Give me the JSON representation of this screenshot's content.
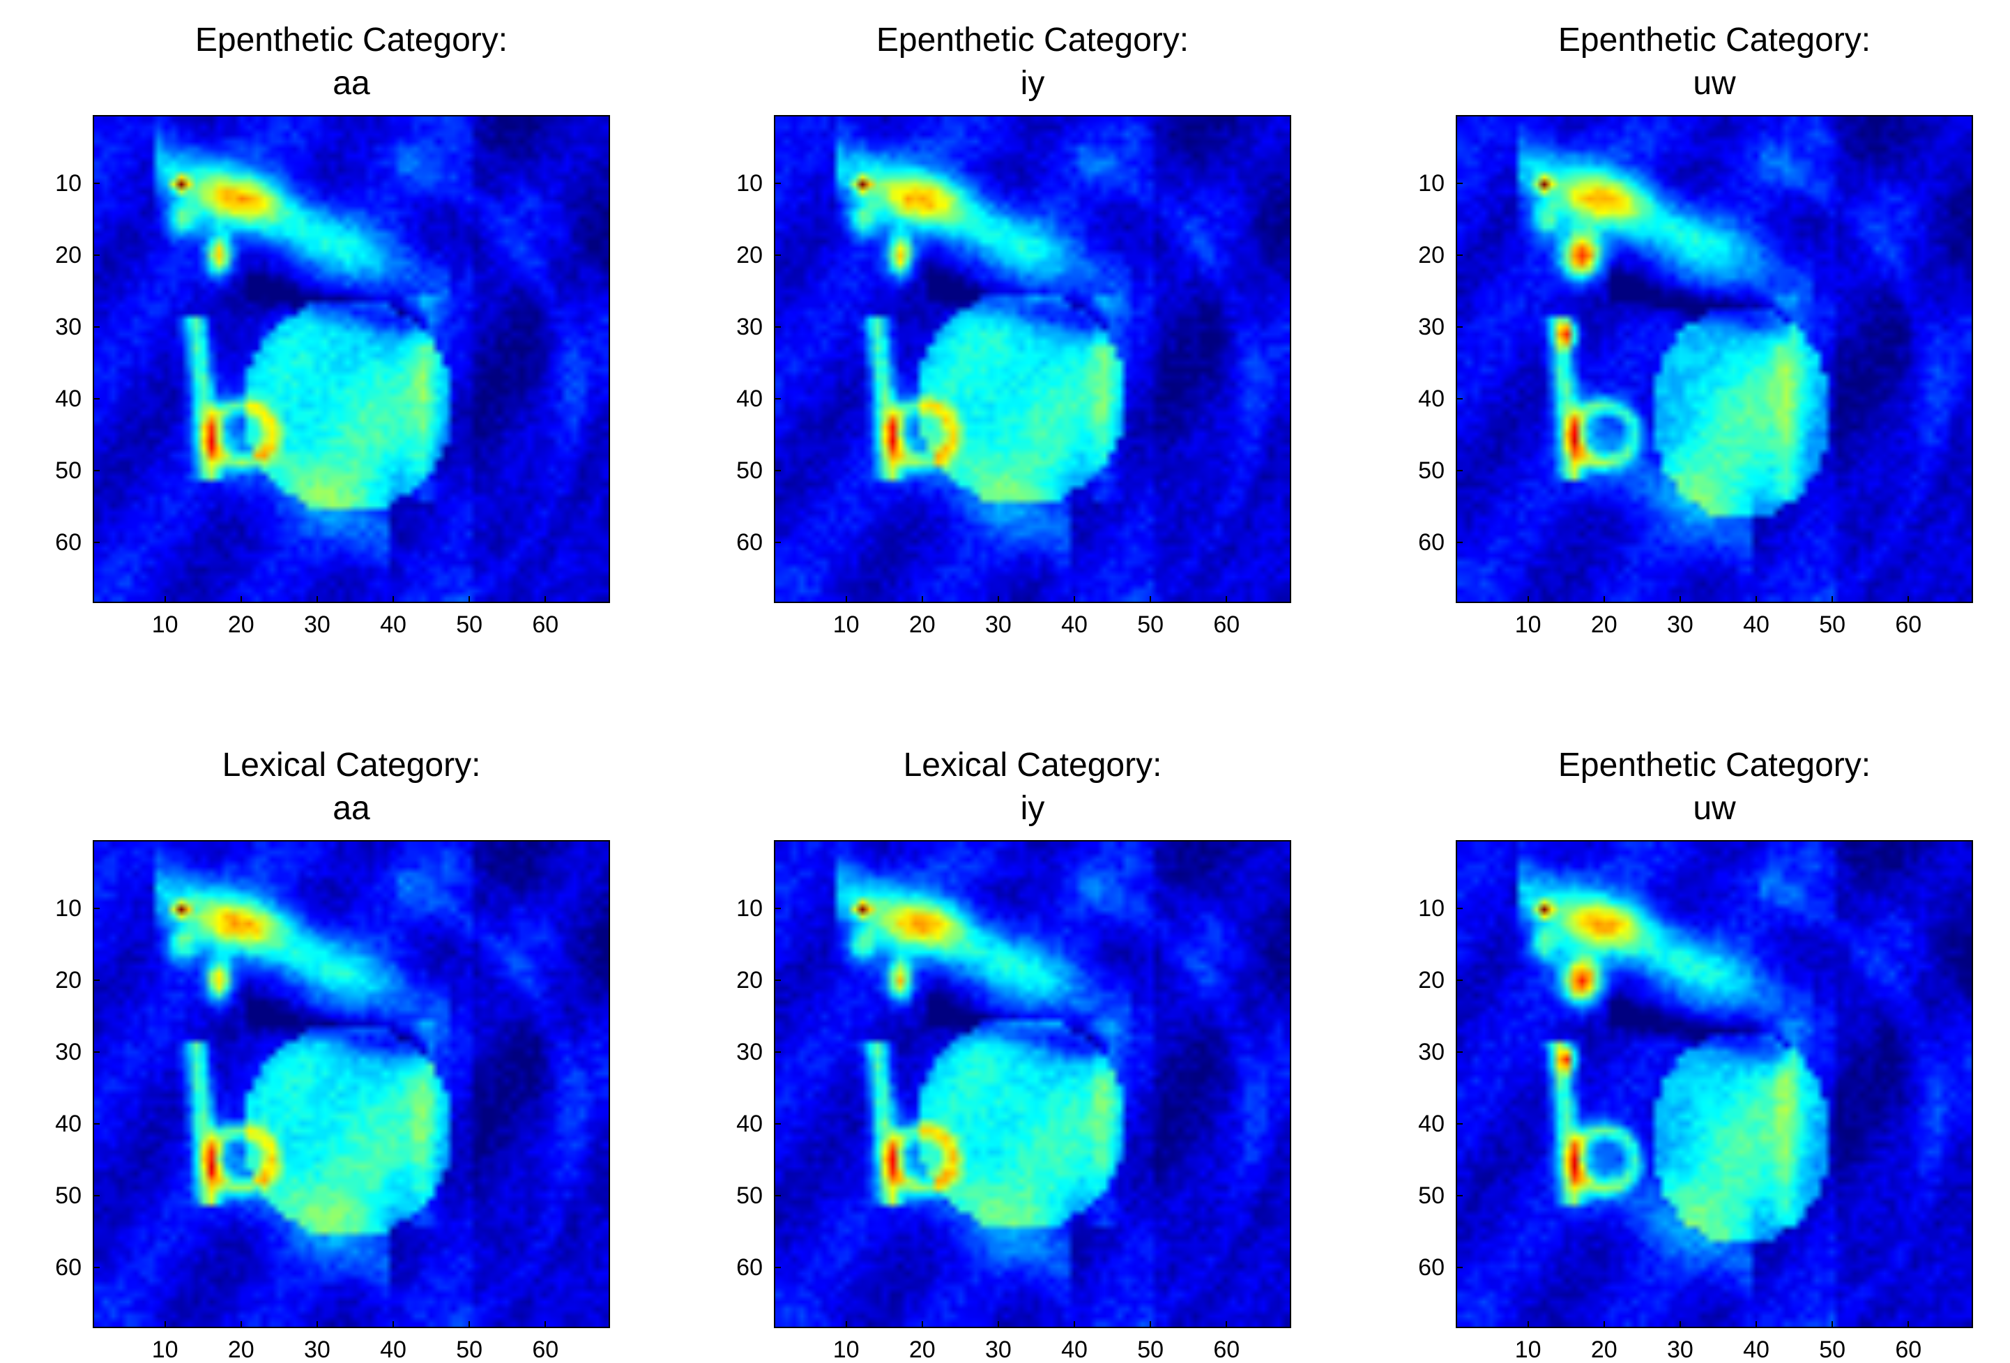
{
  "figure": {
    "panels": [
      {
        "title_line1": "Epenthetic Category:",
        "title_line2": "aa",
        "variant": "aa"
      },
      {
        "title_line1": "Epenthetic Category:",
        "title_line2": "iy",
        "variant": "iy"
      },
      {
        "title_line1": "Epenthetic Category:",
        "title_line2": "uw",
        "variant": "uw"
      },
      {
        "title_line1": "Lexical Category:",
        "title_line2": "aa",
        "variant": "aa"
      },
      {
        "title_line1": "Lexical Category:",
        "title_line2": "iy",
        "variant": "iy"
      },
      {
        "title_line1": "Epenthetic Category:",
        "title_line2": "uw",
        "variant": "uw"
      }
    ],
    "x_ticks": [
      "10",
      "20",
      "30",
      "40",
      "50",
      "60"
    ],
    "y_ticks": [
      "10",
      "20",
      "30",
      "40",
      "50",
      "60"
    ],
    "axis_range": [
      0.5,
      68.5
    ],
    "colormap": "jet",
    "image_content": "mid-sagittal vocal tract MRI heatmap"
  }
}
